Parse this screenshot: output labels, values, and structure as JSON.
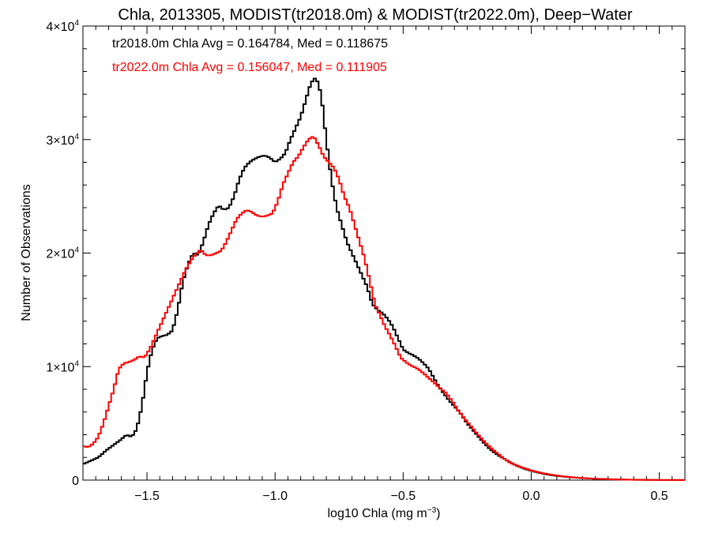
{
  "chart_data": {
    "type": "line",
    "title": "Chla, 2013305, MODIST(tr2018.0m) & MODIST(tr2022.0m), Deep−Water",
    "xlabel_main": "log10 Chla (mg m",
    "xlabel_sup": "−3",
    "xlabel_tail": ")",
    "ylabel": "Number of Observations",
    "xlim": [
      -1.75,
      0.6
    ],
    "ylim": [
      0,
      40000
    ],
    "grid": false,
    "step": true,
    "xticks": [
      {
        "value": -1.5,
        "label": "−1.5"
      },
      {
        "value": -1.0,
        "label": "−1.0"
      },
      {
        "value": -0.5,
        "label": "−0.5"
      },
      {
        "value": 0.0,
        "label": "0.0"
      },
      {
        "value": 0.5,
        "label": "0.5"
      }
    ],
    "yticks": [
      {
        "value": 0,
        "label": "0",
        "sup": ""
      },
      {
        "value": 10000,
        "label": "1×10",
        "sup": "4"
      },
      {
        "value": 20000,
        "label": "2×10",
        "sup": "4"
      },
      {
        "value": 30000,
        "label": "3×10",
        "sup": "4"
      },
      {
        "value": 40000,
        "label": "4×10",
        "sup": "4"
      }
    ],
    "series": [
      {
        "color": "#000000",
        "annotation": "tr2018.0m Chla Avg = 0.164784, Med = 0.118675",
        "points": [
          [
            -1.75,
            1400
          ],
          [
            -1.72,
            1700
          ],
          [
            -1.69,
            2000
          ],
          [
            -1.66,
            2600
          ],
          [
            -1.63,
            3100
          ],
          [
            -1.6,
            3600
          ],
          [
            -1.58,
            4000
          ],
          [
            -1.56,
            3800
          ],
          [
            -1.54,
            4500
          ],
          [
            -1.52,
            6500
          ],
          [
            -1.5,
            9500
          ],
          [
            -1.48,
            11500
          ],
          [
            -1.46,
            12500
          ],
          [
            -1.44,
            12700
          ],
          [
            -1.42,
            12800
          ],
          [
            -1.4,
            13200
          ],
          [
            -1.38,
            15000
          ],
          [
            -1.36,
            17500
          ],
          [
            -1.34,
            19000
          ],
          [
            -1.32,
            20000
          ],
          [
            -1.3,
            19800
          ],
          [
            -1.28,
            21000
          ],
          [
            -1.26,
            22500
          ],
          [
            -1.24,
            23500
          ],
          [
            -1.22,
            24200
          ],
          [
            -1.2,
            23800
          ],
          [
            -1.18,
            24000
          ],
          [
            -1.16,
            25000
          ],
          [
            -1.14,
            26500
          ],
          [
            -1.12,
            27500
          ],
          [
            -1.1,
            28000
          ],
          [
            -1.08,
            28300
          ],
          [
            -1.06,
            28500
          ],
          [
            -1.04,
            28600
          ],
          [
            -1.02,
            28400
          ],
          [
            -1.0,
            28000
          ],
          [
            -0.98,
            28300
          ],
          [
            -0.96,
            28800
          ],
          [
            -0.94,
            30000
          ],
          [
            -0.92,
            31000
          ],
          [
            -0.9,
            32000
          ],
          [
            -0.88,
            33500
          ],
          [
            -0.86,
            35000
          ],
          [
            -0.84,
            35500
          ],
          [
            -0.82,
            34000
          ],
          [
            -0.8,
            30000
          ],
          [
            -0.78,
            26500
          ],
          [
            -0.76,
            24000
          ],
          [
            -0.74,
            22500
          ],
          [
            -0.72,
            21000
          ],
          [
            -0.7,
            20000
          ],
          [
            -0.68,
            19000
          ],
          [
            -0.66,
            18000
          ],
          [
            -0.64,
            17000
          ],
          [
            -0.62,
            15500
          ],
          [
            -0.6,
            15000
          ],
          [
            -0.58,
            14700
          ],
          [
            -0.56,
            14200
          ],
          [
            -0.54,
            13500
          ],
          [
            -0.52,
            12500
          ],
          [
            -0.5,
            11500
          ],
          [
            -0.48,
            11200
          ],
          [
            -0.46,
            11000
          ],
          [
            -0.44,
            10700
          ],
          [
            -0.42,
            10300
          ],
          [
            -0.4,
            9800
          ],
          [
            -0.38,
            9000
          ],
          [
            -0.36,
            8200
          ],
          [
            -0.34,
            7600
          ],
          [
            -0.32,
            7000
          ],
          [
            -0.3,
            6500
          ],
          [
            -0.28,
            6000
          ],
          [
            -0.25,
            5000
          ],
          [
            -0.22,
            4200
          ],
          [
            -0.19,
            3400
          ],
          [
            -0.16,
            2700
          ],
          [
            -0.13,
            2200
          ],
          [
            -0.1,
            1800
          ],
          [
            -0.06,
            1300
          ],
          [
            -0.02,
            950
          ],
          [
            0.02,
            700
          ],
          [
            0.06,
            500
          ],
          [
            0.1,
            370
          ],
          [
            0.15,
            260
          ],
          [
            0.2,
            180
          ],
          [
            0.25,
            120
          ],
          [
            0.3,
            80
          ],
          [
            0.35,
            50
          ],
          [
            0.4,
            30
          ],
          [
            0.45,
            20
          ],
          [
            0.5,
            12
          ],
          [
            0.55,
            8
          ],
          [
            0.6,
            5
          ]
        ]
      },
      {
        "color": "#ff0000",
        "annotation": "tr2022.0m Chla Avg = 0.156047, Med = 0.111905",
        "points": [
          [
            -1.75,
            3000
          ],
          [
            -1.73,
            2900
          ],
          [
            -1.71,
            3200
          ],
          [
            -1.69,
            3800
          ],
          [
            -1.67,
            5000
          ],
          [
            -1.65,
            6500
          ],
          [
            -1.63,
            8000
          ],
          [
            -1.61,
            9800
          ],
          [
            -1.59,
            10300
          ],
          [
            -1.57,
            10400
          ],
          [
            -1.55,
            10600
          ],
          [
            -1.53,
            10900
          ],
          [
            -1.51,
            10800
          ],
          [
            -1.49,
            11500
          ],
          [
            -1.47,
            12500
          ],
          [
            -1.45,
            13500
          ],
          [
            -1.43,
            14500
          ],
          [
            -1.41,
            15500
          ],
          [
            -1.39,
            16500
          ],
          [
            -1.37,
            17500
          ],
          [
            -1.35,
            18500
          ],
          [
            -1.33,
            19300
          ],
          [
            -1.31,
            19900
          ],
          [
            -1.29,
            20300
          ],
          [
            -1.27,
            19800
          ],
          [
            -1.25,
            19800
          ],
          [
            -1.23,
            20000
          ],
          [
            -1.21,
            20200
          ],
          [
            -1.19,
            21000
          ],
          [
            -1.17,
            22000
          ],
          [
            -1.15,
            23000
          ],
          [
            -1.13,
            23500
          ],
          [
            -1.11,
            23800
          ],
          [
            -1.09,
            23600
          ],
          [
            -1.07,
            23300
          ],
          [
            -1.05,
            23200
          ],
          [
            -1.03,
            23300
          ],
          [
            -1.01,
            23500
          ],
          [
            -0.99,
            24500
          ],
          [
            -0.97,
            26000
          ],
          [
            -0.95,
            27000
          ],
          [
            -0.93,
            28000
          ],
          [
            -0.91,
            28500
          ],
          [
            -0.89,
            29300
          ],
          [
            -0.87,
            30000
          ],
          [
            -0.85,
            30300
          ],
          [
            -0.83,
            29500
          ],
          [
            -0.81,
            28500
          ],
          [
            -0.79,
            28000
          ],
          [
            -0.77,
            27500
          ],
          [
            -0.75,
            26500
          ],
          [
            -0.73,
            25000
          ],
          [
            -0.71,
            24000
          ],
          [
            -0.69,
            22500
          ],
          [
            -0.67,
            21000
          ],
          [
            -0.65,
            19500
          ],
          [
            -0.63,
            17500
          ],
          [
            -0.61,
            15500
          ],
          [
            -0.59,
            14500
          ],
          [
            -0.57,
            13500
          ],
          [
            -0.55,
            12700
          ],
          [
            -0.53,
            11800
          ],
          [
            -0.51,
            10800
          ],
          [
            -0.49,
            10400
          ],
          [
            -0.47,
            10100
          ],
          [
            -0.45,
            9900
          ],
          [
            -0.43,
            9600
          ],
          [
            -0.41,
            9200
          ],
          [
            -0.39,
            8800
          ],
          [
            -0.37,
            8400
          ],
          [
            -0.35,
            8000
          ],
          [
            -0.33,
            7600
          ],
          [
            -0.31,
            7000
          ],
          [
            -0.29,
            6300
          ],
          [
            -0.26,
            5400
          ],
          [
            -0.23,
            4600
          ],
          [
            -0.2,
            3800
          ],
          [
            -0.17,
            3100
          ],
          [
            -0.14,
            2500
          ],
          [
            -0.11,
            1950
          ],
          [
            -0.08,
            1500
          ],
          [
            -0.04,
            1150
          ],
          [
            0.0,
            850
          ],
          [
            0.04,
            630
          ],
          [
            0.08,
            470
          ],
          [
            0.12,
            340
          ],
          [
            0.17,
            230
          ],
          [
            0.22,
            150
          ],
          [
            0.27,
            100
          ],
          [
            0.32,
            65
          ],
          [
            0.37,
            40
          ],
          [
            0.42,
            25
          ],
          [
            0.47,
            15
          ],
          [
            0.52,
            9
          ],
          [
            0.57,
            5
          ],
          [
            0.6,
            3
          ]
        ]
      }
    ]
  }
}
